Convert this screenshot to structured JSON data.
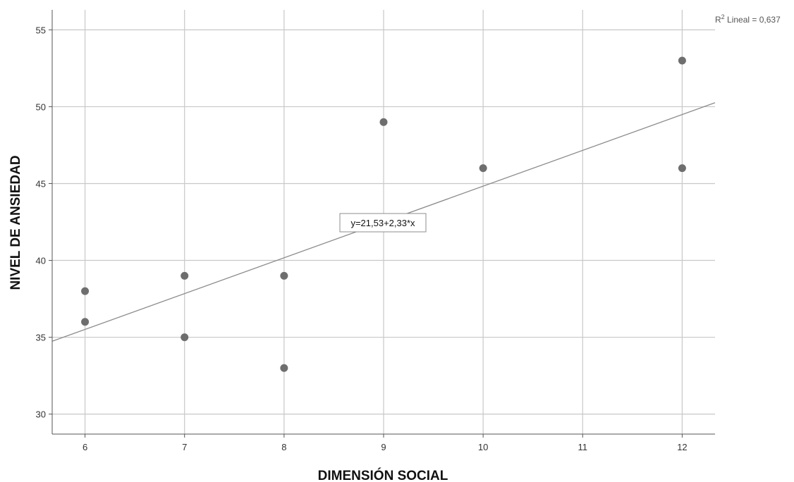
{
  "chart_data": {
    "type": "scatter",
    "xlabel": "DIMENSIÓN SOCIAL",
    "ylabel": "NIVEL DE ANSIEDAD",
    "xlim": [
      5.67,
      12.33
    ],
    "ylim": [
      28.7,
      56.3
    ],
    "x_ticks": [
      6,
      7,
      8,
      9,
      10,
      11,
      12
    ],
    "y_ticks": [
      30,
      35,
      40,
      45,
      50,
      55
    ],
    "grid": true,
    "point_color": "#6e6e6e",
    "line_color": "#8c8c8c",
    "points": [
      {
        "x": 6,
        "y": 38
      },
      {
        "x": 6,
        "y": 36
      },
      {
        "x": 7,
        "y": 39
      },
      {
        "x": 7,
        "y": 35
      },
      {
        "x": 8,
        "y": 39
      },
      {
        "x": 8,
        "y": 33
      },
      {
        "x": 9,
        "y": 49
      },
      {
        "x": 10,
        "y": 46
      },
      {
        "x": 12,
        "y": 53
      },
      {
        "x": 12,
        "y": 46
      }
    ],
    "fit_line": {
      "intercept": 21.53,
      "slope": 2.33,
      "equation_label": "y=21,53+2,33*x",
      "r2_prefix": "R",
      "r2_sup": "2",
      "r2_label": " Lineal = 0,637"
    }
  }
}
